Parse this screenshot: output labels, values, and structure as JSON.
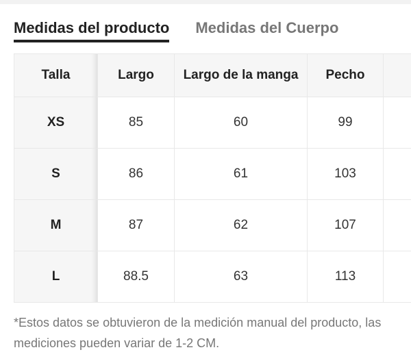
{
  "tabs": [
    {
      "label": "Medidas del producto",
      "active": true
    },
    {
      "label": "Medidas del Cuerpo",
      "active": false
    }
  ],
  "table": {
    "headers": [
      "Talla",
      "Largo",
      "Largo de la manga",
      "Pecho"
    ],
    "rows": [
      [
        "XS",
        "85",
        "60",
        "99"
      ],
      [
        "S",
        "86",
        "61",
        "103"
      ],
      [
        "M",
        "87",
        "62",
        "107"
      ],
      [
        "L",
        "88.5",
        "63",
        "113"
      ]
    ]
  },
  "note": "*Estos datos se obtuvieron de la medición manual del producto, las mediciones pueden variar de 1-2 CM."
}
